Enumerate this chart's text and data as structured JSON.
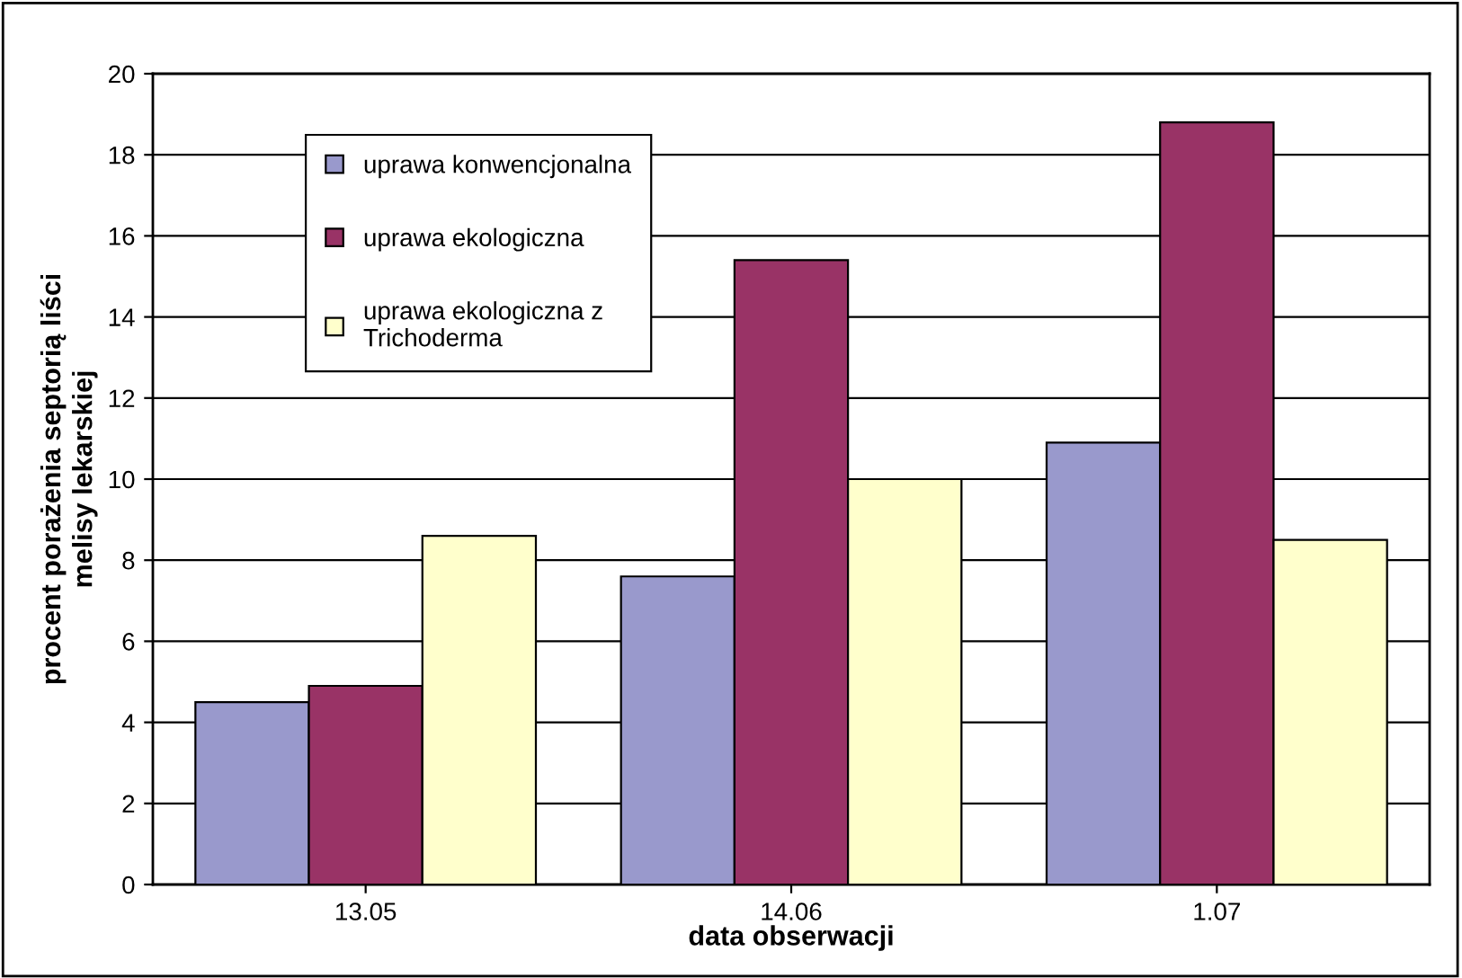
{
  "chart_data": {
    "type": "bar",
    "xlabel": "data obserwacji",
    "ylabel": "procent porażenia septorią liści\nmelisy lekarskiej",
    "categories": [
      "13.05",
      "14.06",
      "1.07"
    ],
    "series": [
      {
        "name": "uprawa konwencjonalna",
        "color": "#9999cc",
        "values": [
          4.5,
          7.6,
          10.9
        ]
      },
      {
        "name": "uprawa ekologiczna",
        "color": "#993366",
        "values": [
          4.9,
          15.4,
          18.8
        ]
      },
      {
        "name": "uprawa ekologiczna z\nTrichoderma",
        "color": "#ffffcc",
        "values": [
          8.6,
          10.0,
          8.5
        ]
      }
    ],
    "ylim": [
      0,
      20
    ],
    "yticks": [
      0,
      2,
      4,
      6,
      8,
      10,
      12,
      14,
      16,
      18,
      20
    ],
    "grid": "y",
    "legend": "top left"
  }
}
